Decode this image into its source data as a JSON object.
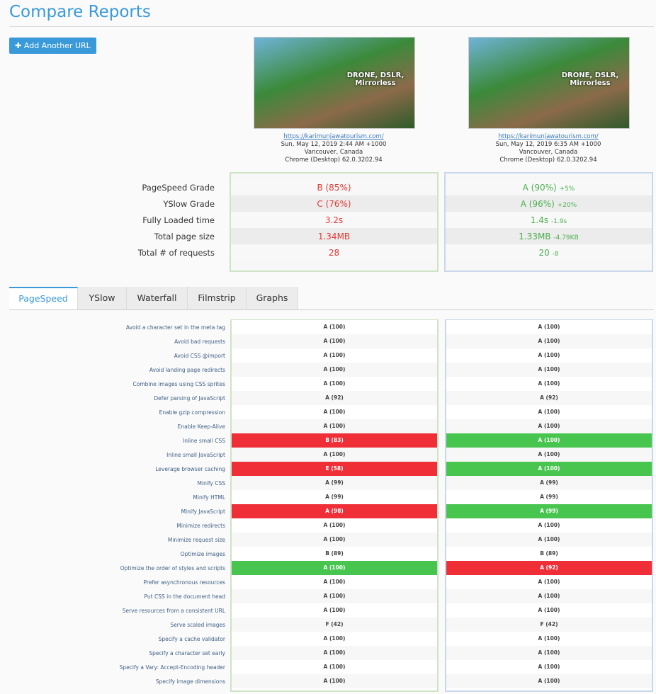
{
  "header": {
    "title": "Compare Reports",
    "add_button": "Add Another URL"
  },
  "reports": [
    {
      "thumbnail_text": "DRONE, DSLR, Mirrorless",
      "url": "https://karimunjawatourism.com/",
      "date": "Sun, May 12, 2019 2:44 AM +1000",
      "location": "Vancouver, Canada",
      "browser": "Chrome (Desktop) 62.0.3202.94"
    },
    {
      "thumbnail_text": "DRONE, DSLR, Mirrorless",
      "url": "https://karimunjawatourism.com/",
      "date": "Sun, May 12, 2019 6:35 AM +1000",
      "location": "Vancouver, Canada",
      "browser": "Chrome (Desktop) 62.0.3202.94"
    }
  ],
  "summary": [
    {
      "label": "PageSpeed Grade",
      "left": "B (85%)",
      "right": "A (90%)",
      "right_delta": "+5%"
    },
    {
      "label": "YSlow Grade",
      "left": "C (76%)",
      "right": "A (96%)",
      "right_delta": "+20%"
    },
    {
      "label": "Fully Loaded time",
      "left": "3.2s",
      "right": "1.4s",
      "right_delta": "-1.9s"
    },
    {
      "label": "Total page size",
      "left": "1.34MB",
      "right": "1.33MB",
      "right_delta": "-4.79KB"
    },
    {
      "label": "Total # of requests",
      "left": "28",
      "right": "20",
      "right_delta": "-8"
    }
  ],
  "tabs": [
    {
      "label": "PageSpeed",
      "active": true
    },
    {
      "label": "YSlow",
      "active": false
    },
    {
      "label": "Waterfall",
      "active": false
    },
    {
      "label": "Filmstrip",
      "active": false
    },
    {
      "label": "Graphs",
      "active": false
    }
  ],
  "rules": [
    {
      "name": "Avoid a character set in the meta tag",
      "left": "A (100)",
      "right": "A (100)"
    },
    {
      "name": "Avoid bad requests",
      "left": "A (100)",
      "right": "A (100)"
    },
    {
      "name": "Avoid CSS @import",
      "left": "A (100)",
      "right": "A (100)"
    },
    {
      "name": "Avoid landing page redirects",
      "left": "A (100)",
      "right": "A (100)"
    },
    {
      "name": "Combine images using CSS sprites",
      "left": "A (100)",
      "right": "A (100)"
    },
    {
      "name": "Defer parsing of JavaScript",
      "left": "A (92)",
      "right": "A (92)"
    },
    {
      "name": "Enable gzip compression",
      "left": "A (100)",
      "right": "A (100)"
    },
    {
      "name": "Enable Keep-Alive",
      "left": "A (100)",
      "right": "A (100)"
    },
    {
      "name": "Inline small CSS",
      "left": "B (83)",
      "right": "A (100)",
      "left_color": "#ef2e37",
      "right_color": "#47c54f"
    },
    {
      "name": "Inline small JavaScript",
      "left": "A (100)",
      "right": "A (100)"
    },
    {
      "name": "Leverage browser caching",
      "left": "E (58)",
      "right": "A (100)",
      "left_color": "#ef2e37",
      "right_color": "#47c54f"
    },
    {
      "name": "Minify CSS",
      "left": "A (99)",
      "right": "A (99)"
    },
    {
      "name": "Minify HTML",
      "left": "A (99)",
      "right": "A (99)"
    },
    {
      "name": "Minify JavaScript",
      "left": "A (98)",
      "right": "A (99)",
      "left_color": "#ef2e37",
      "right_color": "#47c54f"
    },
    {
      "name": "Minimize redirects",
      "left": "A (100)",
      "right": "A (100)"
    },
    {
      "name": "Minimize request size",
      "left": "A (100)",
      "right": "A (100)"
    },
    {
      "name": "Optimize images",
      "left": "B (89)",
      "right": "B (89)"
    },
    {
      "name": "Optimize the order of styles and scripts",
      "left": "A (100)",
      "right": "A (92)",
      "left_color": "#47c54f",
      "right_color": "#ef2e37"
    },
    {
      "name": "Prefer asynchronous resources",
      "left": "A (100)",
      "right": "A (100)"
    },
    {
      "name": "Put CSS in the document head",
      "left": "A (100)",
      "right": "A (100)"
    },
    {
      "name": "Serve resources from a consistent URL",
      "left": "A (100)",
      "right": "A (100)"
    },
    {
      "name": "Serve scaled images",
      "left": "F (42)",
      "right": "F (42)"
    },
    {
      "name": "Specify a cache validator",
      "left": "A (100)",
      "right": "A (100)"
    },
    {
      "name": "Specify a character set early",
      "left": "A (100)",
      "right": "A (100)"
    },
    {
      "name": "Specify a Vary: Accept-Encoding header",
      "left": "A (100)",
      "right": "A (100)"
    },
    {
      "name": "Specify image dimensions",
      "left": "A (100)",
      "right": "A (100)"
    }
  ]
}
